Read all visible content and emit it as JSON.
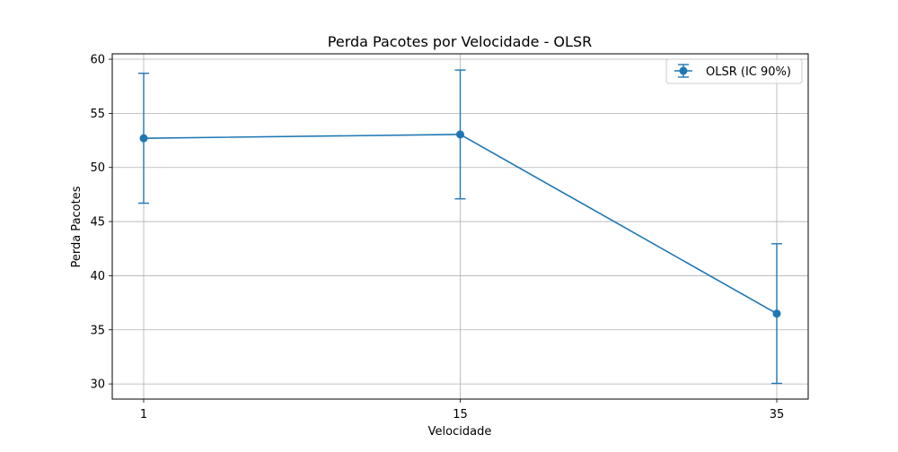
{
  "chart_data": {
    "type": "line",
    "title": "Perda Pacotes por Velocidade - OLSR",
    "xlabel": "Velocidade",
    "ylabel": "Perda Pacotes",
    "categories": [
      "1",
      "15",
      "35"
    ],
    "yticks": [
      30,
      35,
      40,
      45,
      50,
      55,
      60
    ],
    "ylim": [
      28.6,
      60.5
    ],
    "grid": true,
    "legend_position": "top-right",
    "series": [
      {
        "name": "OLSR (IC 90%)",
        "color": "#1f77b4",
        "marker": "circle",
        "values": [
          52.7,
          53.05,
          36.5
        ],
        "error_low": [
          46.7,
          47.1,
          30.05
        ],
        "error_high": [
          58.7,
          59.0,
          42.95
        ]
      }
    ]
  }
}
